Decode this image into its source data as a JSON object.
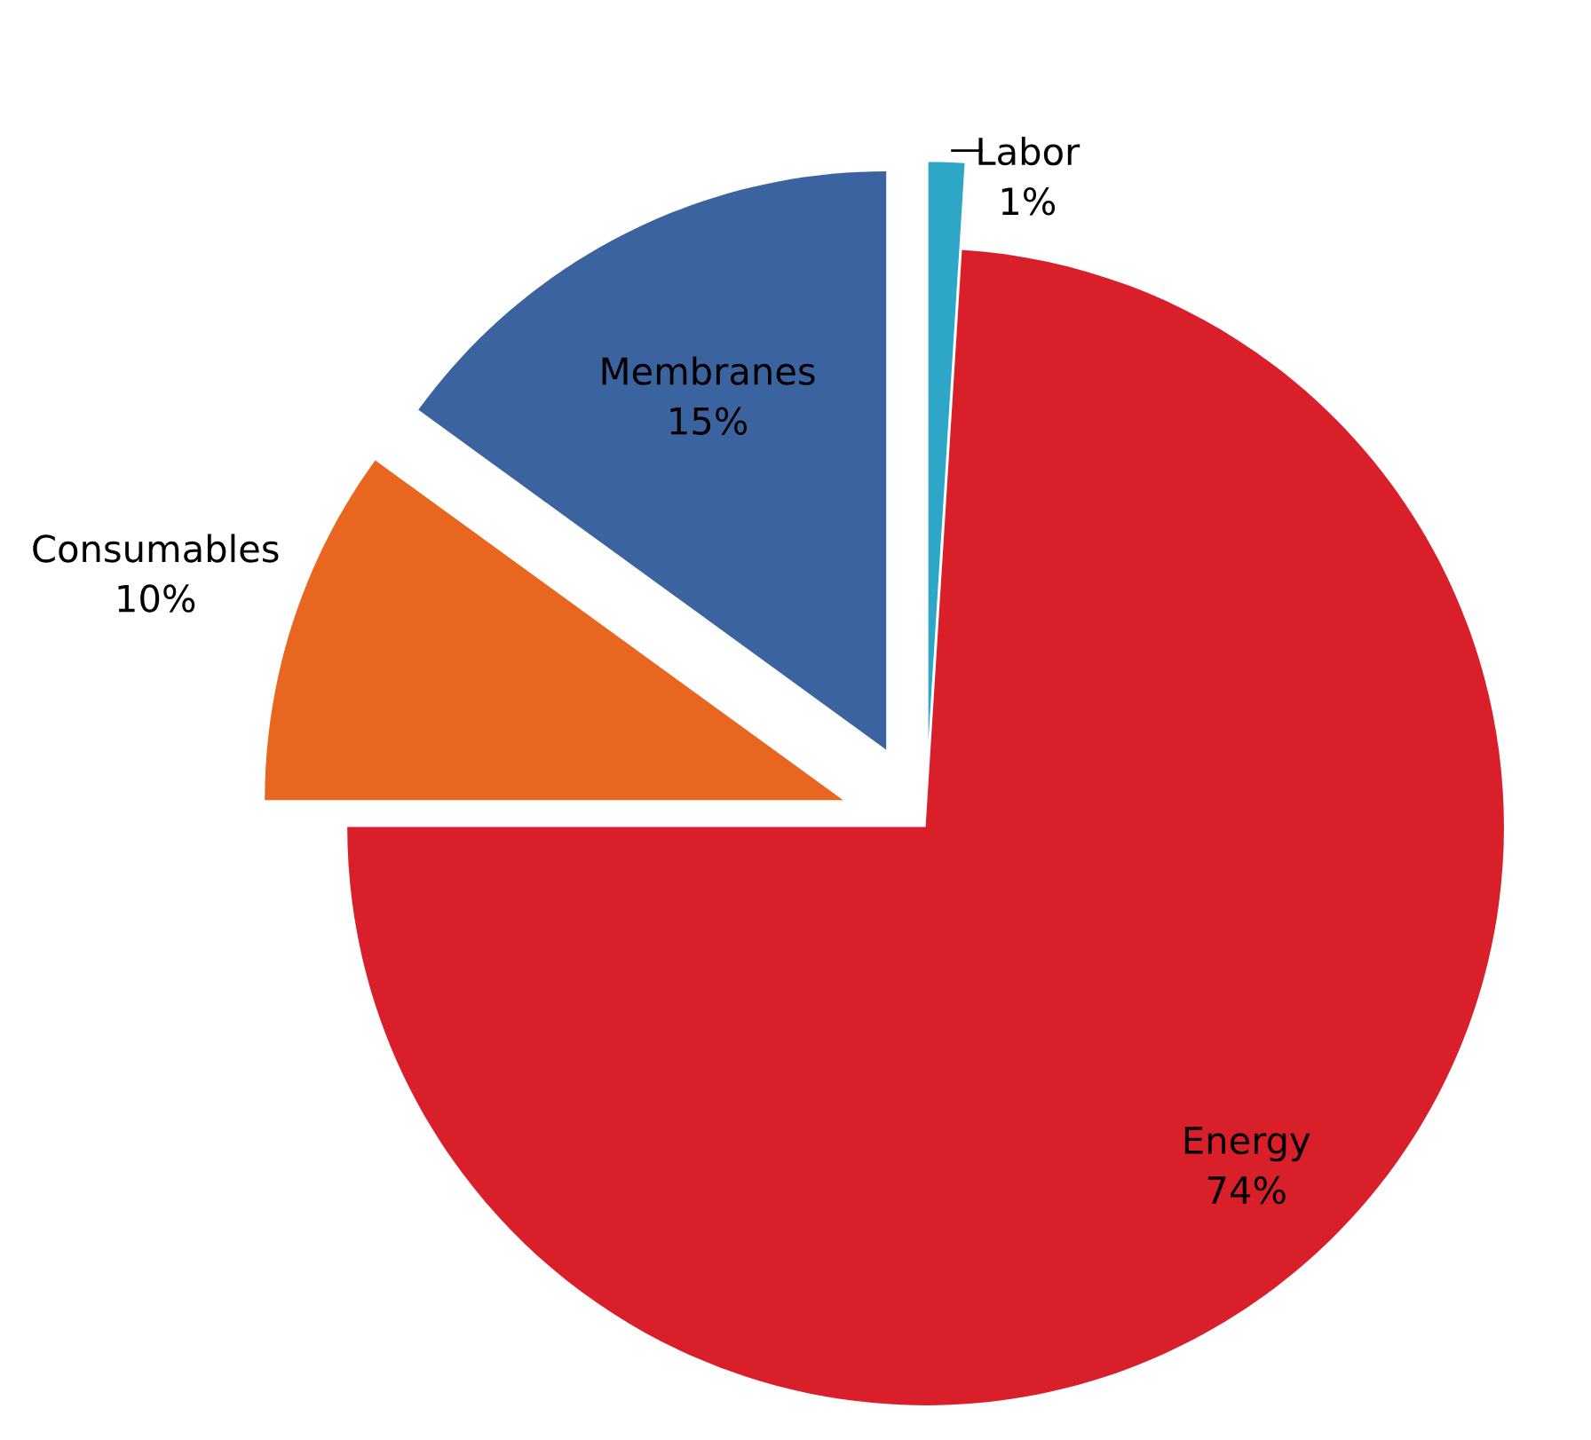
{
  "chart_data": {
    "type": "pie",
    "categories": [
      "Labor",
      "Energy",
      "Consumables",
      "Membranes"
    ],
    "values": [
      1,
      74,
      10,
      15
    ],
    "colors": [
      "#2ea6c8",
      "#d91f2a",
      "#e8661f",
      "#3a63a0"
    ],
    "value_labels": [
      "1%",
      "74%",
      "10%",
      "15%"
    ]
  }
}
